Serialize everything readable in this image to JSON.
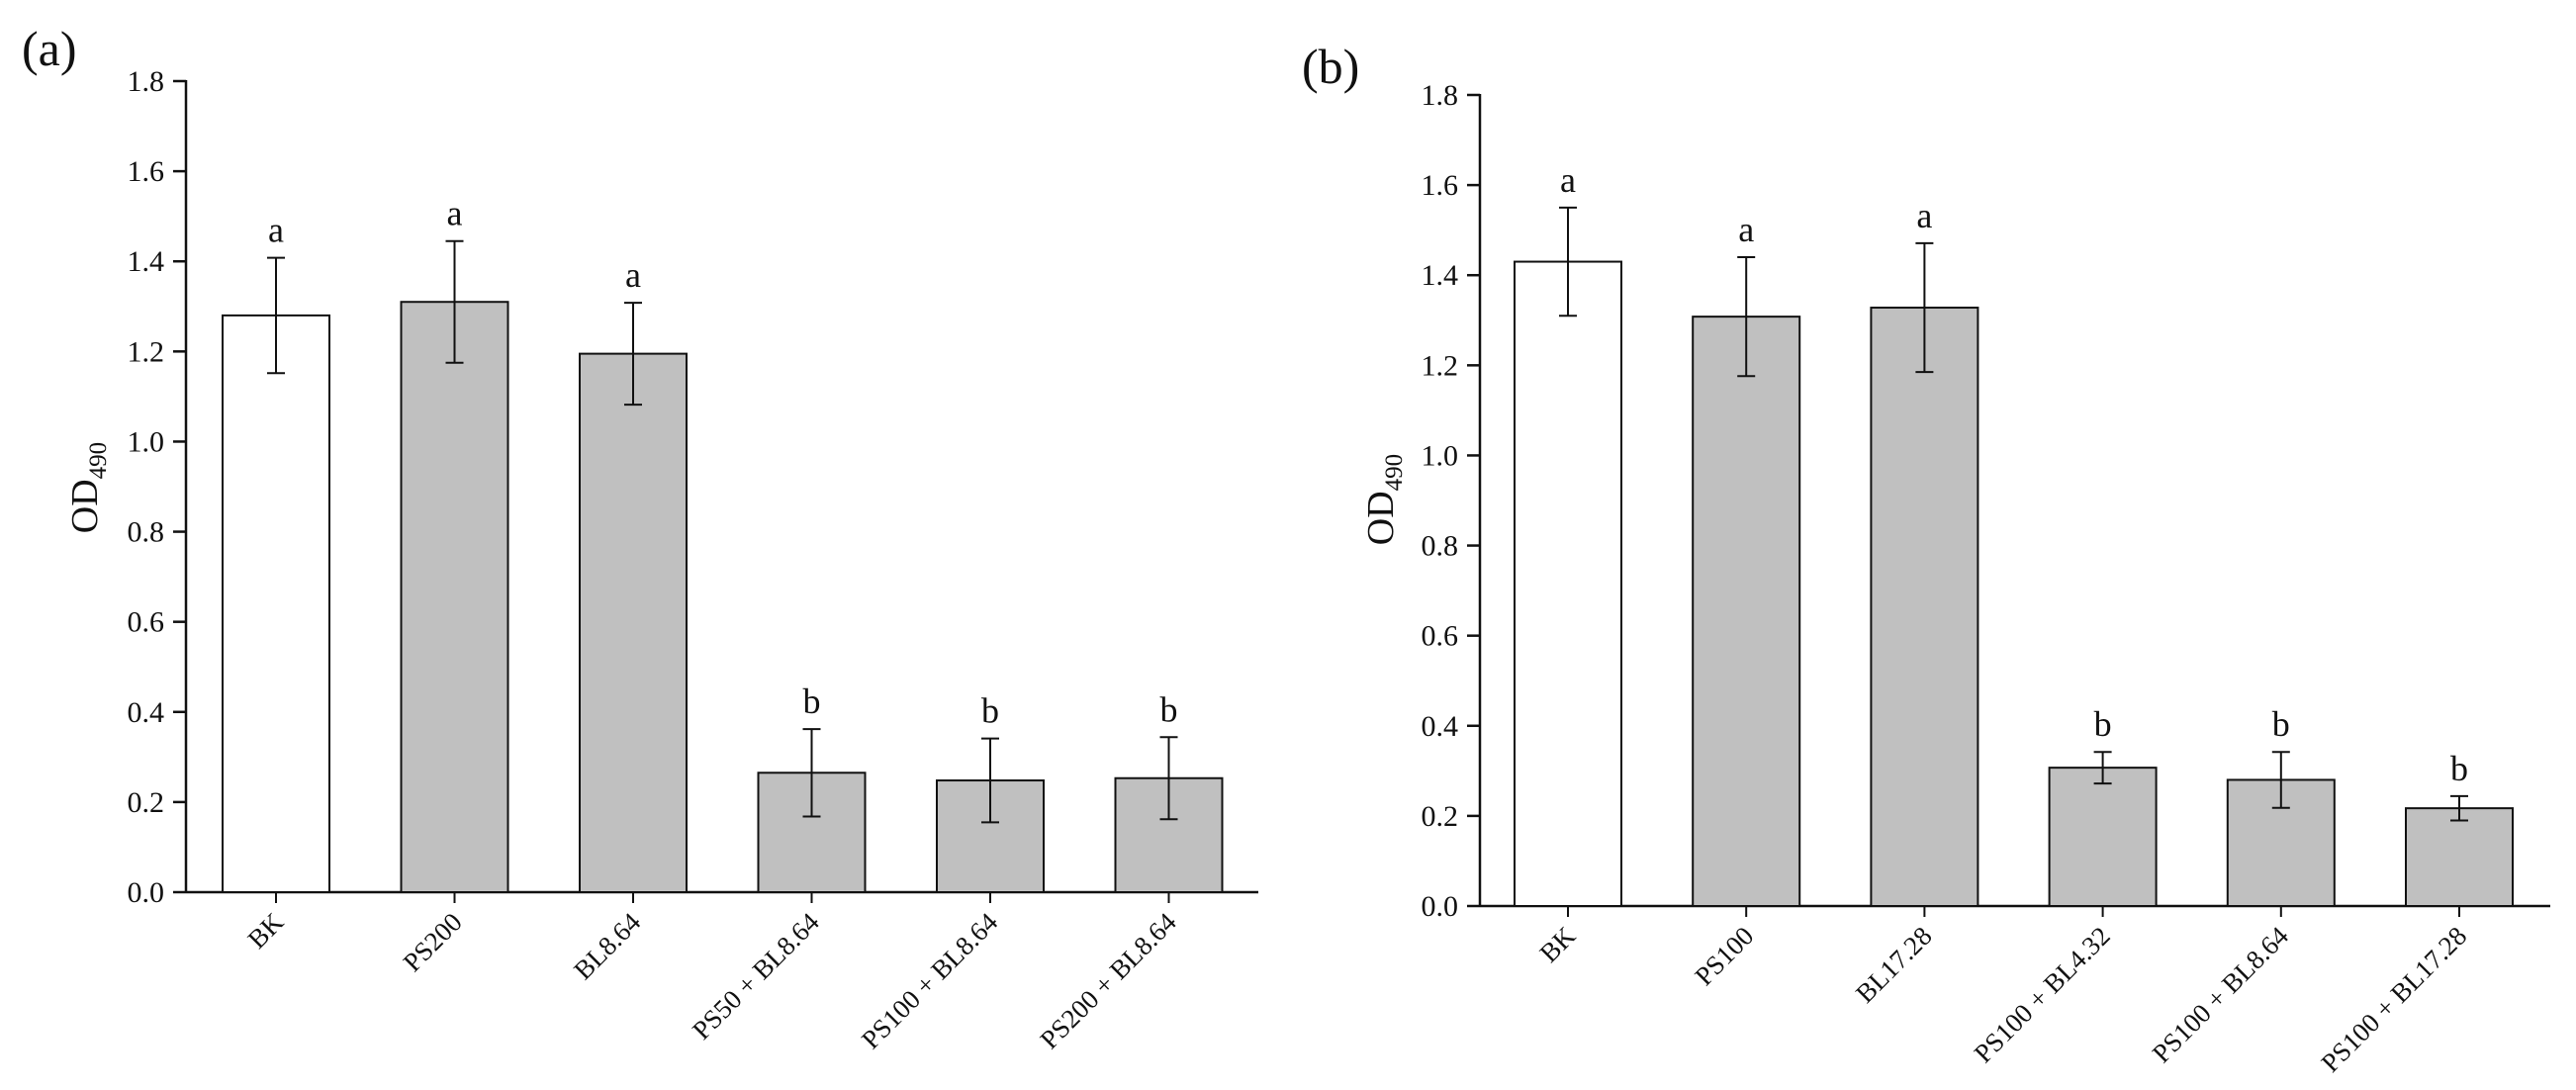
{
  "colors": {
    "blank_bar": "#ffffff",
    "treatment_bar": "#c0c0c0",
    "stroke": "#111111"
  },
  "chart_data": [
    {
      "type": "bar",
      "panel_label": "(a)",
      "ylabel": "OD",
      "ylabel_subscript": "490",
      "ylim": [
        0,
        1.8
      ],
      "yticks": [
        "0.0",
        "0.2",
        "0.4",
        "0.6",
        "0.8",
        "1.0",
        "1.2",
        "1.4",
        "1.6",
        "1.8"
      ],
      "categories": [
        "BK",
        "PS200",
        "BL8.64",
        "PS50 + BL8.64",
        "PS100 + BL8.64",
        "PS200 + BL8.64"
      ],
      "values": [
        1.28,
        1.31,
        1.195,
        0.265,
        0.248,
        0.253
      ],
      "errors": [
        0.128,
        0.135,
        0.113,
        0.097,
        0.093,
        0.091
      ],
      "significance": [
        "a",
        "a",
        "a",
        "b",
        "b",
        "b"
      ]
    },
    {
      "type": "bar",
      "panel_label": "(b)",
      "ylabel": "OD",
      "ylabel_subscript": "490",
      "ylim": [
        0,
        1.8
      ],
      "yticks": [
        "0.0",
        "0.2",
        "0.4",
        "0.6",
        "0.8",
        "1.0",
        "1.2",
        "1.4",
        "1.6",
        "1.8"
      ],
      "categories": [
        "BK",
        "PS100",
        "BL17.28",
        "PS100 + BL4.32",
        "PS100 + BL8.64",
        "PS100 + BL17.28"
      ],
      "values": [
        1.43,
        1.308,
        1.328,
        0.307,
        0.28,
        0.217
      ],
      "errors": [
        0.12,
        0.132,
        0.143,
        0.035,
        0.062,
        0.027
      ],
      "significance": [
        "a",
        "a",
        "a",
        "b",
        "b",
        "b"
      ]
    }
  ]
}
